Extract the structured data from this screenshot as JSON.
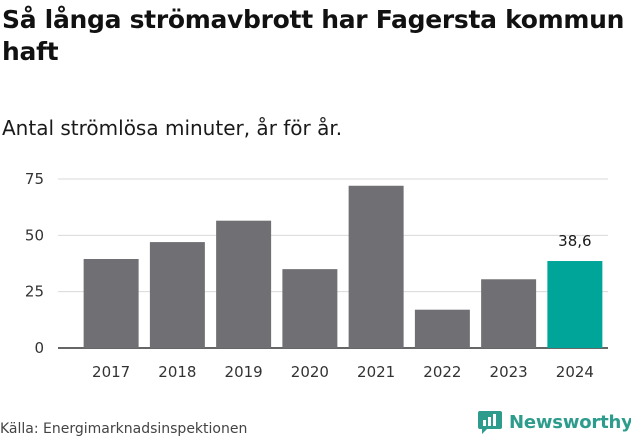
{
  "header": {
    "title": "Så långa strömavbrott har Fagersta kommun haft",
    "subtitle": "Antal strömlösa minuter, år för år."
  },
  "footer": {
    "source": "Källa: Energimarknadsinspektionen",
    "brand": "Newsworthy"
  },
  "colors": {
    "bar": "#706f73",
    "highlight": "#00a59a",
    "grid": "#d9d9d9",
    "axis": "#333333",
    "brand": "#2d9c8c"
  },
  "chart_data": {
    "type": "bar",
    "title": "Så långa strömavbrott har Fagersta kommun haft",
    "subtitle": "Antal strömlösa minuter, år för år.",
    "xlabel": "",
    "ylabel": "",
    "categories": [
      "2017",
      "2018",
      "2019",
      "2020",
      "2021",
      "2022",
      "2023",
      "2024"
    ],
    "values": [
      39.5,
      47,
      56.5,
      35,
      72,
      17,
      30.5,
      38.6
    ],
    "highlight_index": 7,
    "data_labels": [
      {
        "index": 7,
        "text": "38,6"
      }
    ],
    "yticks": [
      0,
      25,
      50,
      75
    ],
    "ylim": [
      0,
      75
    ],
    "grid": true,
    "legend": "none"
  }
}
